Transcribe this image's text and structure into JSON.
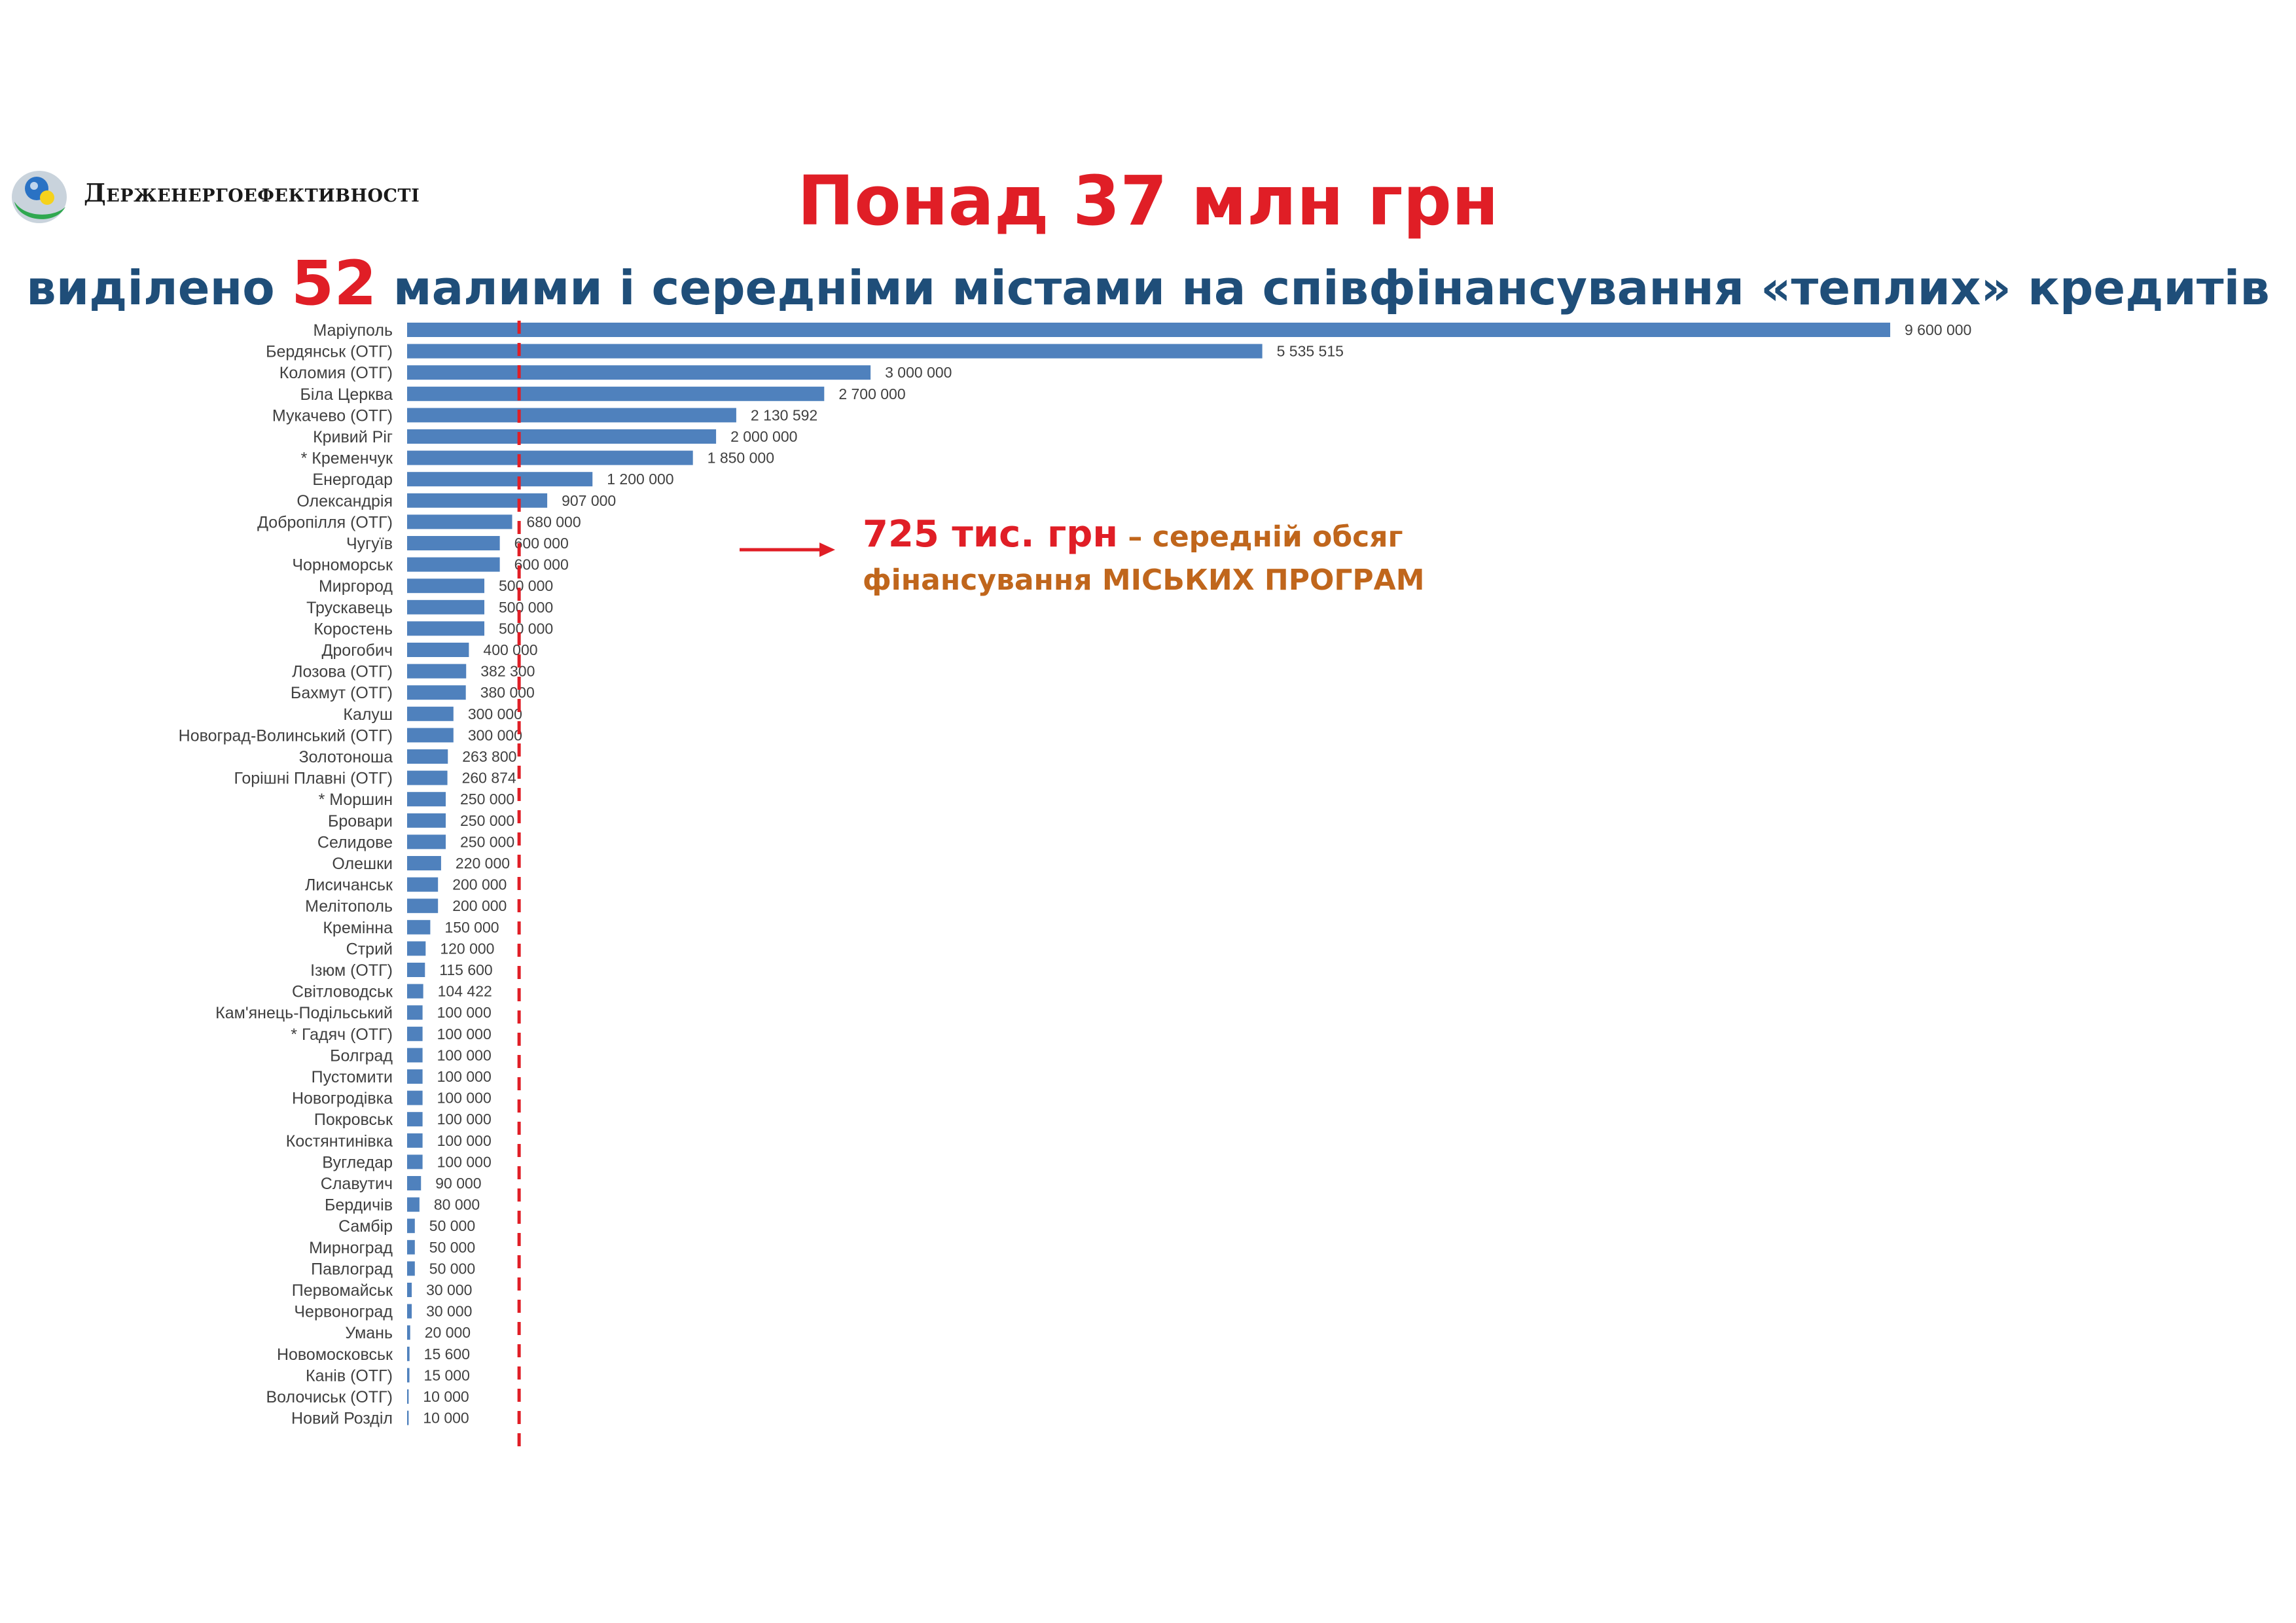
{
  "header": {
    "logo_text": "Держенергоефективності",
    "title": "Понад 37 млн грн",
    "subtitle_pre": "виділено ",
    "subtitle_number": "52",
    "subtitle_post": " малими і середніми містами на співфінансування «теплих» кредитів"
  },
  "callout": {
    "amount": "725 тис. грн",
    "line1_rest": " – середній обсяг",
    "line2": "фінансування МІСЬКИХ ПРОГРАМ"
  },
  "colors": {
    "bar": "#4f81bd",
    "title": "#e01e26",
    "subtitle": "#1f4e79",
    "callout_text": "#c0661c",
    "average_line": "#e01e26"
  },
  "chart_data": {
    "type": "bar",
    "orientation": "horizontal",
    "average_reference": 725000,
    "categories": [
      "Маріуполь",
      "Бердянськ (ОТГ)",
      "Коломия (ОТГ)",
      "Біла Церква",
      "Мукачево (ОТГ)",
      "Кривий Ріг",
      "* Кременчук",
      "Енергодар",
      "Олександрія",
      "Добропілля (ОТГ)",
      "Чугуїв",
      "Чорноморськ",
      "Миргород",
      "Трускавець",
      "Коростень",
      "Дрогобич",
      "Лозова (ОТГ)",
      "Бахмут (ОТГ)",
      "Калуш",
      "Новоград-Волинський (ОТГ)",
      "Золотоноша",
      "Горішні Плавні (ОТГ)",
      "* Моршин",
      "Бровари",
      "Селидове",
      "Олешки",
      "Лисичанськ",
      "Мелітополь",
      "Кремінна",
      "Стрий",
      "Ізюм (ОТГ)",
      "Світловодськ",
      "Кам'янець-Подільський",
      "* Гадяч (ОТГ)",
      "Болград",
      "Пустомити",
      "Новогродівка",
      "Покровськ",
      "Костянтинівка",
      "Вугледар",
      "Славутич",
      "Бердичів",
      "Самбір",
      "Мирноград",
      "Павлоград",
      "Первомайськ",
      "Червоноград",
      "Умань",
      "Новомосковськ",
      "Канів (ОТГ)",
      "Волочиськ (ОТГ)",
      "Новий Розділ"
    ],
    "values": [
      9600000,
      5535515,
      3000000,
      2700000,
      2130592,
      2000000,
      1850000,
      1200000,
      907000,
      680000,
      600000,
      600000,
      500000,
      500000,
      500000,
      400000,
      382300,
      380000,
      300000,
      300000,
      263800,
      260874,
      250000,
      250000,
      250000,
      220000,
      200000,
      200000,
      150000,
      120000,
      115600,
      104422,
      100000,
      100000,
      100000,
      100000,
      100000,
      100000,
      100000,
      100000,
      90000,
      80000,
      50000,
      50000,
      50000,
      30000,
      30000,
      20000,
      15600,
      15000,
      10000,
      10000
    ],
    "labels": [
      "9 600 000",
      "5 535 515",
      "3 000 000",
      "2 700 000",
      "2 130 592",
      "2 000 000",
      "1 850 000",
      "1 200 000",
      "907 000",
      "680 000",
      "600 000",
      "600 000",
      "500 000",
      "500 000",
      "500 000",
      "400 000",
      "382 300",
      "380 000",
      "300 000",
      "300 000",
      "263 800",
      "260 874",
      "250 000",
      "250 000",
      "250 000",
      "220 000",
      "200 000",
      "200 000",
      "150 000",
      "120 000",
      "115 600",
      "104 422",
      "100 000",
      "100 000",
      "100 000",
      "100 000",
      "100 000",
      "100 000",
      "100 000",
      "100 000",
      "90 000",
      "80 000",
      "50 000",
      "50 000",
      "50 000",
      "30 000",
      "30 000",
      "20 000",
      "15 600",
      "15 000",
      "10 000",
      "10 000"
    ],
    "xlim": [
      0,
      9600000
    ],
    "grid": false
  }
}
